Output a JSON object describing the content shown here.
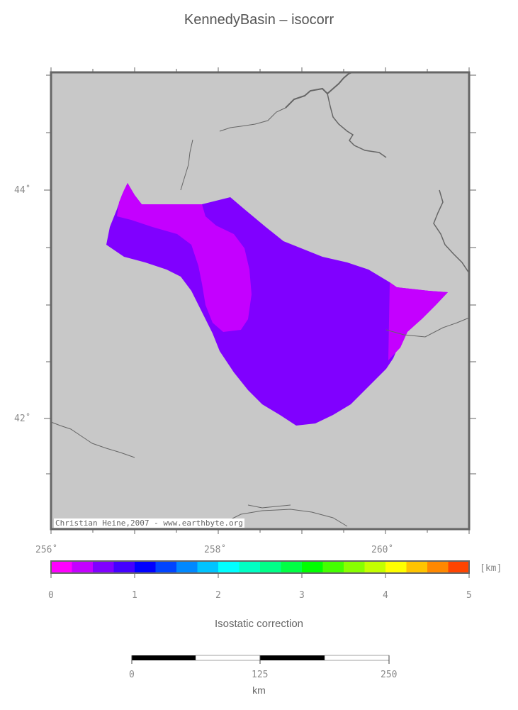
{
  "title": "KennedyBasin – isocorr",
  "credit": "Christian Heine,2007 - www.earthbyte.org",
  "colors": {
    "map_background": "#c8c8c8",
    "frame": "#666666",
    "coast": "#666666",
    "region_magenta": "#c400ff",
    "region_violet": "#8000ff",
    "region_pink": "#e000ff"
  },
  "map": {
    "lon_labels": [
      "256˚",
      "258˚",
      "260˚"
    ],
    "lat_labels": [
      "44˚",
      "42˚"
    ]
  },
  "colorbar": {
    "unit": "[km]",
    "ticks": [
      "0",
      "1",
      "2",
      "3",
      "4",
      "5"
    ],
    "colors": [
      "#ff00ff",
      "#c400ff",
      "#8000ff",
      "#4400ff",
      "#0000ff",
      "#0044ff",
      "#0088ff",
      "#00c4ff",
      "#00ffff",
      "#00ffc4",
      "#00ff88",
      "#00ff44",
      "#00ff00",
      "#44ff00",
      "#88ff00",
      "#c4ff00",
      "#ffff00",
      "#ffc400",
      "#ff8800",
      "#ff4400"
    ],
    "label": "Isostatic correction"
  },
  "scalebar": {
    "ticks": [
      "0",
      "125",
      "250"
    ],
    "unit": "km"
  }
}
